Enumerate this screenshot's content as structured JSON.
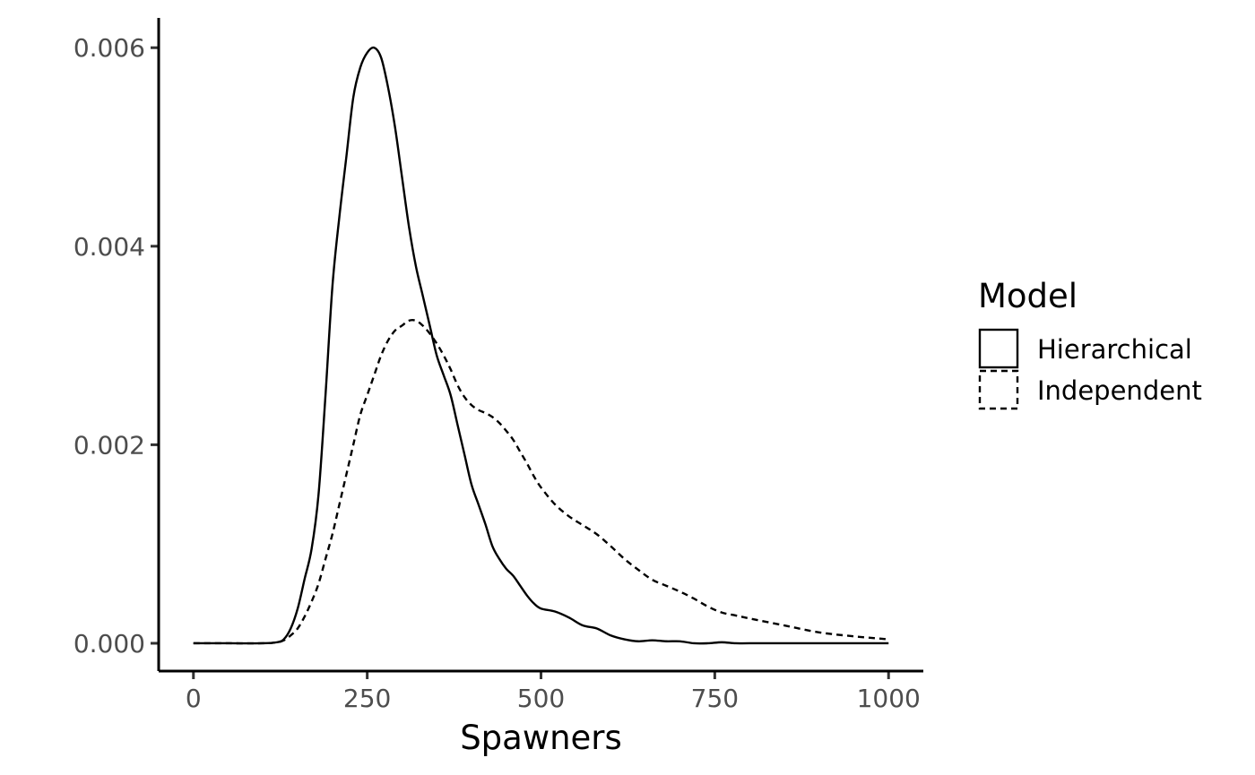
{
  "chart_data": {
    "type": "line",
    "title": "",
    "xlabel": "Spawners",
    "ylabel": "",
    "xlim": [
      -50,
      1050
    ],
    "ylim": [
      -0.00028,
      0.0063
    ],
    "x_ticks": [
      0,
      250,
      500,
      750,
      1000
    ],
    "x_tick_labels": [
      "0",
      "250",
      "500",
      "750",
      "1000"
    ],
    "y_ticks": [
      0,
      0.002,
      0.004,
      0.006
    ],
    "y_tick_labels": [
      "0.000",
      "0.002",
      "0.004",
      "0.006"
    ],
    "grid": false,
    "legend": {
      "title": "Model",
      "placement": "right"
    },
    "series": [
      {
        "name": "Hierarchical",
        "linetype": "solid",
        "x": [
          0,
          50,
          100,
          120,
          130,
          140,
          150,
          160,
          170,
          180,
          190,
          200,
          210,
          220,
          230,
          240,
          250,
          260,
          270,
          280,
          290,
          300,
          310,
          320,
          330,
          340,
          350,
          360,
          370,
          380,
          390,
          400,
          410,
          420,
          430,
          440,
          450,
          460,
          470,
          480,
          490,
          500,
          520,
          540,
          560,
          580,
          600,
          620,
          640,
          660,
          680,
          700,
          720,
          740,
          760,
          780,
          800,
          850,
          900,
          950,
          1000
        ],
        "y": [
          0.0,
          0.0,
          0.0,
          1e-05,
          4e-05,
          0.00015,
          0.00035,
          0.00065,
          0.00095,
          0.0015,
          0.0025,
          0.0036,
          0.0043,
          0.0049,
          0.0055,
          0.0058,
          0.00595,
          0.006,
          0.0059,
          0.0056,
          0.0052,
          0.0047,
          0.0042,
          0.0038,
          0.0035,
          0.0032,
          0.0029,
          0.0027,
          0.0025,
          0.0022,
          0.0019,
          0.0016,
          0.0014,
          0.0012,
          0.00098,
          0.00085,
          0.00075,
          0.00068,
          0.00058,
          0.00048,
          0.0004,
          0.00035,
          0.00032,
          0.00026,
          0.00018,
          0.00015,
          8e-05,
          4e-05,
          2e-05,
          3e-05,
          2e-05,
          2e-05,
          0.0,
          0.0,
          1e-05,
          0.0,
          0.0,
          0.0,
          0.0,
          0.0,
          0.0
        ]
      },
      {
        "name": "Independent",
        "linetype": "dashed",
        "x": [
          0,
          50,
          100,
          120,
          130,
          140,
          150,
          160,
          170,
          180,
          190,
          200,
          210,
          220,
          230,
          240,
          250,
          260,
          270,
          280,
          290,
          300,
          310,
          320,
          330,
          340,
          350,
          360,
          370,
          380,
          390,
          400,
          410,
          420,
          430,
          440,
          450,
          460,
          470,
          480,
          490,
          500,
          520,
          540,
          560,
          580,
          600,
          620,
          640,
          660,
          680,
          700,
          720,
          740,
          760,
          780,
          800,
          850,
          900,
          950,
          1000
        ],
        "y": [
          0.0,
          0.0,
          0.0,
          1e-05,
          3e-05,
          8e-05,
          0.00015,
          0.00027,
          0.00042,
          0.0006,
          0.00085,
          0.0011,
          0.0014,
          0.0017,
          0.002,
          0.0023,
          0.0025,
          0.0027,
          0.0029,
          0.00305,
          0.00315,
          0.0032,
          0.00325,
          0.00325,
          0.0032,
          0.00312,
          0.00302,
          0.0029,
          0.00276,
          0.0026,
          0.00248,
          0.0024,
          0.00235,
          0.00232,
          0.00228,
          0.00222,
          0.00214,
          0.00205,
          0.00193,
          0.00181,
          0.00168,
          0.00157,
          0.0014,
          0.00128,
          0.00119,
          0.0011,
          0.00098,
          0.00085,
          0.00074,
          0.00064,
          0.00058,
          0.00052,
          0.00045,
          0.00037,
          0.00031,
          0.00028,
          0.00025,
          0.00018,
          0.00011,
          7e-05,
          4e-05
        ]
      }
    ]
  }
}
